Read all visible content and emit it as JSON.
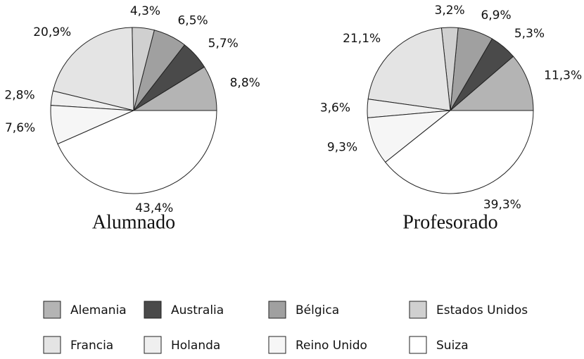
{
  "chart_data": [
    {
      "type": "pie",
      "title": "Alumnado",
      "categories": [
        "Alemania",
        "Australia",
        "Bélgica",
        "Estados Unidos",
        "Francia",
        "Holanda",
        "Reino Unido",
        "Suiza"
      ],
      "values": [
        8.8,
        5.7,
        6.5,
        4.3,
        20.9,
        2.8,
        7.6,
        43.4
      ],
      "value_labels": [
        "8,8%",
        "5,7%",
        "6,5%",
        "4,3%",
        "20,9%",
        "2,8%",
        "7,6%",
        "43,4%"
      ],
      "colors": [
        "#b4b4b4",
        "#4a4a4a",
        "#a0a0a0",
        "#d0d0d0",
        "#e4e4e4",
        "#efefef",
        "#f6f6f6",
        "#ffffff"
      ]
    },
    {
      "type": "pie",
      "title": "Profesorado",
      "categories": [
        "Alemania",
        "Australia",
        "Bélgica",
        "Estados Unidos",
        "Francia",
        "Holanda",
        "Reino Unido",
        "Suiza"
      ],
      "values": [
        11.3,
        5.3,
        6.9,
        3.2,
        21.1,
        3.6,
        9.3,
        39.3
      ],
      "value_labels": [
        "11,3%",
        "5,3%",
        "6,9%",
        "3,2%",
        "21,1%",
        "3,6%",
        "9,3%",
        "39,3%"
      ],
      "colors": [
        "#b4b4b4",
        "#4a4a4a",
        "#a0a0a0",
        "#d0d0d0",
        "#e4e4e4",
        "#efefef",
        "#f6f6f6",
        "#ffffff"
      ]
    }
  ]
}
